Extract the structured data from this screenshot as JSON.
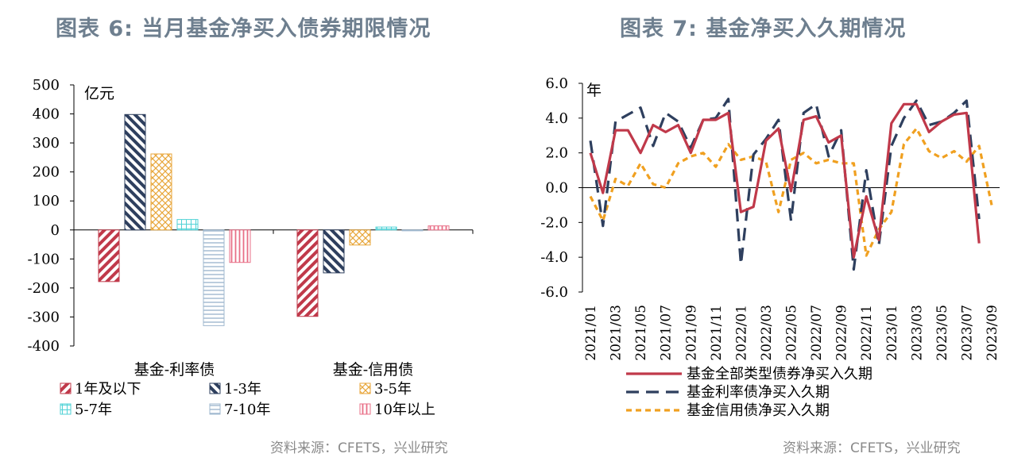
{
  "chart_data": [
    {
      "title": "图表 6: 当月基金净买入债券期限情况",
      "type": "bar",
      "unit_label": "亿元",
      "ylim": [
        -400,
        500
      ],
      "yticks": [
        "500",
        "400",
        "300",
        "200",
        "100",
        "0",
        "-100",
        "-200",
        "-300",
        "-400"
      ],
      "categories": [
        "基金-利率债",
        "基金-信用债"
      ],
      "series": [
        {
          "name": "1年及以下",
          "values": [
            -178,
            -298
          ],
          "color": "#c0394a"
        },
        {
          "name": "1-3年",
          "values": [
            398,
            -148
          ],
          "color": "#2e3f5e"
        },
        {
          "name": "3-5年",
          "values": [
            262,
            -52
          ],
          "color": "#e8a63a"
        },
        {
          "name": "5-7年",
          "values": [
            36,
            10
          ],
          "color": "#4fd2d6"
        },
        {
          "name": "7-10年",
          "values": [
            -330,
            -3
          ],
          "color": "#9fb8cf"
        },
        {
          "name": "10年以上",
          "values": [
            -112,
            14
          ],
          "color": "#e86f87"
        }
      ],
      "source": "资料来源：CFETS，兴业研究"
    },
    {
      "title": "图表 7: 基金净买入久期情况",
      "type": "line",
      "unit_label": "年",
      "ylim": [
        -6,
        6
      ],
      "yticks": [
        "6.0",
        "4.0",
        "2.0",
        "0.0",
        "-2.0",
        "-4.0",
        "-6.0"
      ],
      "x": [
        "2021/01",
        "2021/02",
        "2021/03",
        "2021/04",
        "2021/05",
        "2021/06",
        "2021/07",
        "2021/08",
        "2021/09",
        "2021/10",
        "2021/11",
        "2021/12",
        "2022/01",
        "2022/02",
        "2022/03",
        "2022/04",
        "2022/05",
        "2022/06",
        "2022/07",
        "2022/08",
        "2022/09",
        "2022/10",
        "2022/11",
        "2022/12",
        "2023/01",
        "2023/02",
        "2023/03",
        "2023/04",
        "2023/05",
        "2023/06",
        "2023/07",
        "2023/08",
        "2023/09"
      ],
      "xtick_labels": [
        "2021/01",
        "2021/03",
        "2021/05",
        "2021/07",
        "2021/09",
        "2021/11",
        "2022/01",
        "2022/03",
        "2022/05",
        "2022/07",
        "2022/09",
        "2022/11",
        "2023/01",
        "2023/03",
        "2023/05",
        "2023/07",
        "2023/09"
      ],
      "series": [
        {
          "name": "基金全部类型债券净买入久期",
          "color": "#c0394a",
          "dash": "solid",
          "values": [
            2.0,
            -0.3,
            3.3,
            3.3,
            2.0,
            3.6,
            3.2,
            3.6,
            2.0,
            3.9,
            3.9,
            4.3,
            -1.4,
            -1.1,
            2.7,
            3.4,
            -0.2,
            3.9,
            4.1,
            2.6,
            3.0,
            -4.0,
            -0.5,
            -3.0,
            3.7,
            4.8,
            4.8,
            3.2,
            3.8,
            4.2,
            4.3,
            -3.2,
            null
          ]
        },
        {
          "name": "基金利率债净买入久期",
          "color": "#2e3f5e",
          "dash": "long",
          "values": [
            2.7,
            -2.2,
            3.8,
            4.2,
            4.6,
            2.4,
            4.3,
            3.8,
            2.3,
            3.9,
            4.0,
            5.1,
            -4.4,
            1.9,
            2.8,
            3.9,
            -1.9,
            4.3,
            4.8,
            1.8,
            3.3,
            -4.7,
            1.0,
            -3.3,
            2.4,
            4.0,
            5.0,
            3.6,
            3.8,
            4.3,
            5.0,
            -1.8,
            null
          ]
        },
        {
          "name": "基金信用债净买入久期",
          "color": "#f0a020",
          "dash": "short",
          "values": [
            -0.5,
            -1.9,
            0.5,
            0.1,
            1.4,
            0.2,
            0.0,
            1.4,
            1.8,
            2.0,
            1.2,
            2.5,
            1.6,
            1.8,
            1.5,
            -1.4,
            1.6,
            2.0,
            1.4,
            1.6,
            1.4,
            1.4,
            -3.9,
            -2.4,
            -1.4,
            2.5,
            3.4,
            2.1,
            1.7,
            2.1,
            1.5,
            2.4,
            -1.0
          ]
        }
      ],
      "source": "资料来源：CFETS，兴业研究"
    }
  ]
}
